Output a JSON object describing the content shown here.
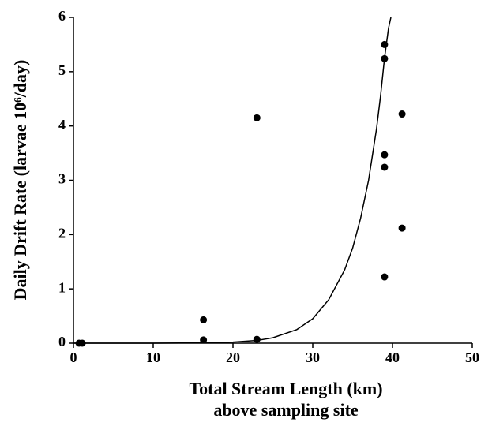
{
  "chart_data": {
    "type": "scatter",
    "x_label": "Total Stream Length (km)",
    "x_label_line2": "above sampling site",
    "y_label": "Daily  Drift  Rate  (larvae  10⁶/day)",
    "xlim": [
      0,
      50
    ],
    "xticks": [
      0,
      10,
      20,
      30,
      40,
      50
    ],
    "ylim": [
      0,
      6
    ],
    "yticks": [
      0,
      1,
      2,
      3,
      4,
      5,
      6
    ],
    "series": [
      {
        "type": "scatter",
        "color": "#000000",
        "x": [
          0.7,
          1.1,
          16.3,
          16.3,
          23,
          23,
          39,
          39,
          39,
          39,
          39,
          41.2,
          41.2
        ],
        "values": [
          0,
          0,
          0.43,
          0.06,
          4.15,
          0.07,
          5.5,
          5.24,
          3.47,
          3.24,
          1.22,
          4.22,
          2.12
        ]
      },
      {
        "type": "line",
        "color": "#000000",
        "x": [
          0,
          10,
          15,
          20,
          23,
          25,
          28,
          30,
          32,
          34,
          35,
          36,
          37,
          38,
          38.5,
          39,
          39.5,
          39.8
        ],
        "values": [
          0,
          0,
          0.005,
          0.02,
          0.05,
          0.1,
          0.25,
          0.45,
          0.8,
          1.35,
          1.75,
          2.3,
          3.0,
          3.95,
          4.55,
          5.25,
          5.8,
          6.0
        ]
      }
    ]
  }
}
